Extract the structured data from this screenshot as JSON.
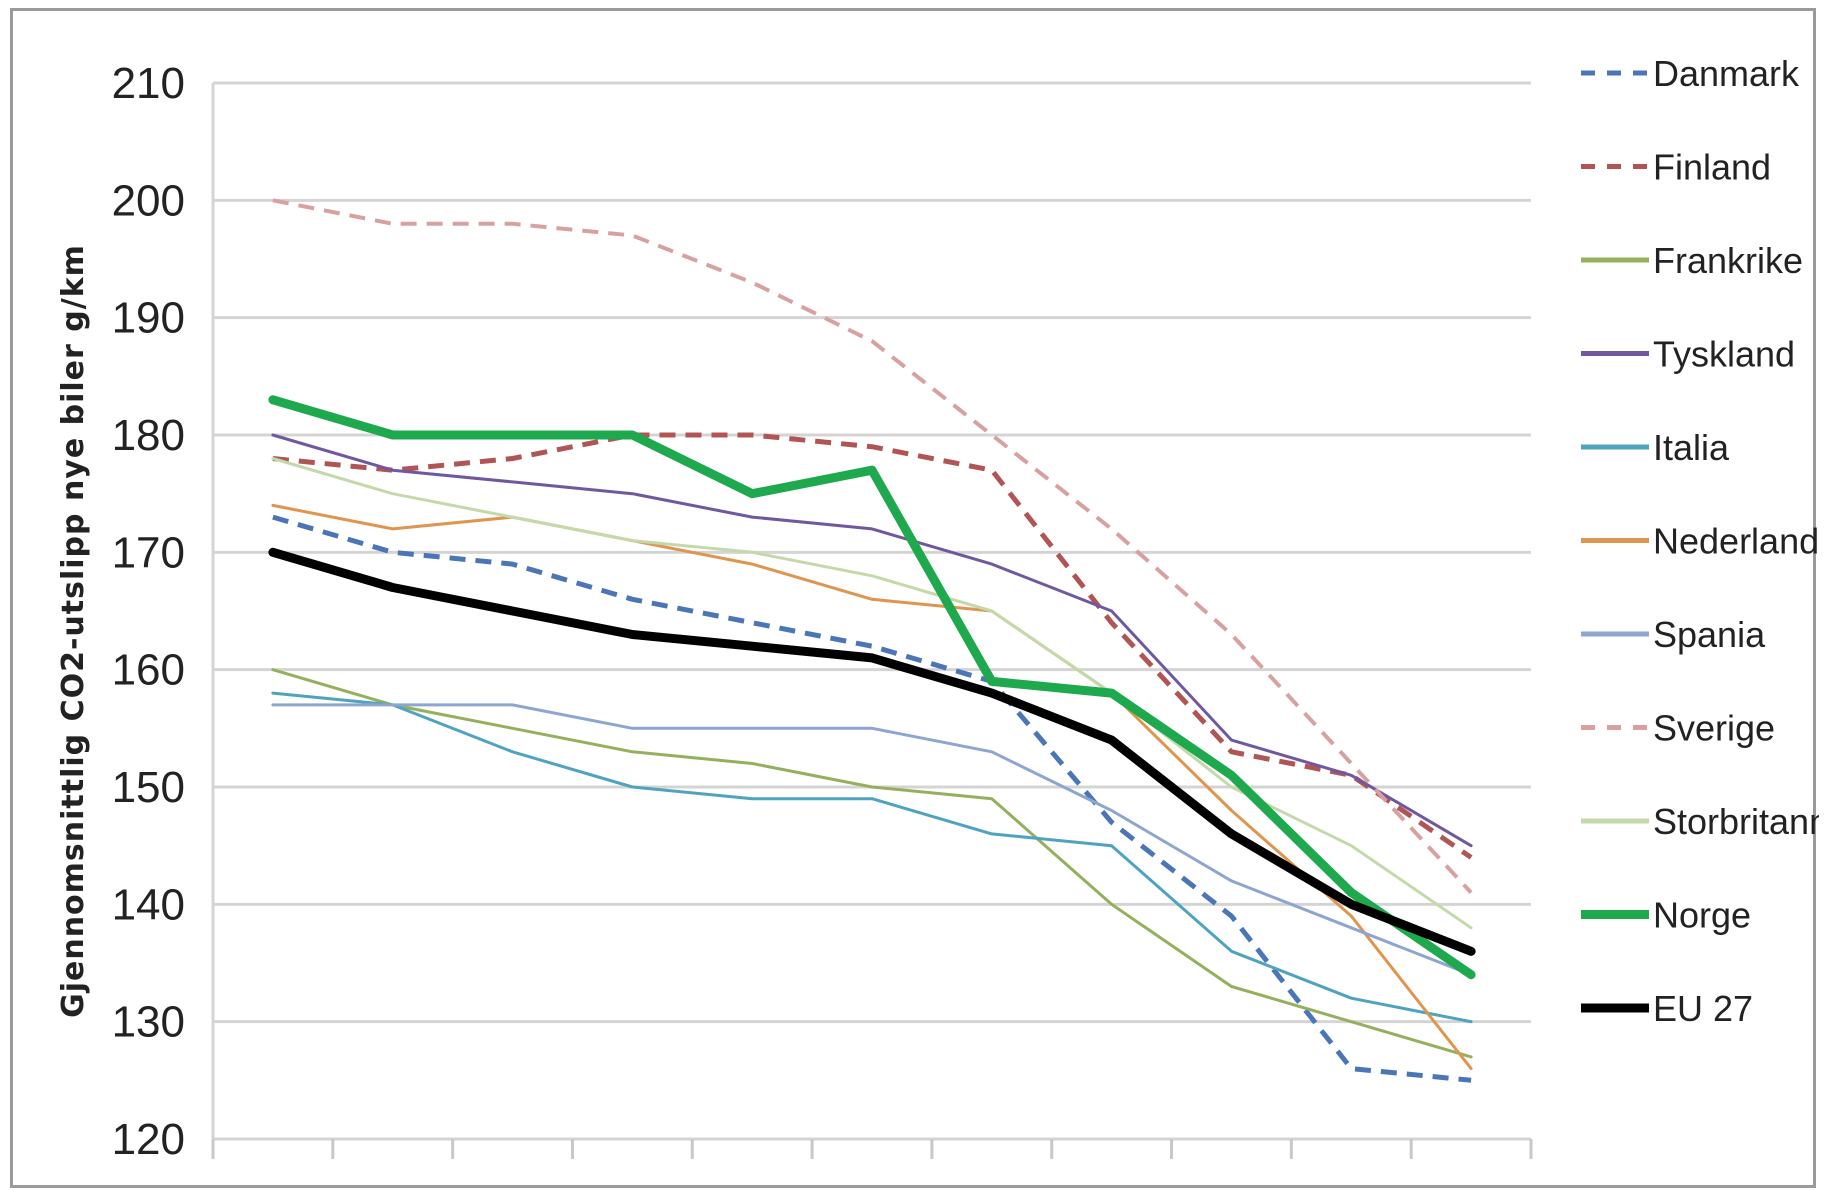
{
  "chart_data": {
    "type": "line",
    "title": "",
    "xlabel": "",
    "ylabel": "Gjennomsnittlig CO2-utslipp nye biler g/km",
    "ylim": [
      120,
      210
    ],
    "yticks": [
      120,
      130,
      140,
      150,
      160,
      170,
      180,
      190,
      200,
      210
    ],
    "grid": true,
    "legend": "right",
    "x": [
      0,
      1,
      2,
      3,
      4,
      5,
      6,
      7,
      8,
      9,
      10
    ],
    "series": [
      {
        "name": "Danmark",
        "color": "#4a76b8",
        "dash": "dashed",
        "width": 5,
        "values": [
          173,
          170,
          169,
          166,
          164,
          162,
          159,
          147,
          139,
          126,
          125
        ]
      },
      {
        "name": "Finland",
        "color": "#b05454",
        "dash": "dashed",
        "width": 5,
        "values": [
          178,
          177,
          178,
          180,
          180,
          179,
          177,
          164,
          153,
          151,
          144
        ]
      },
      {
        "name": "Frankrike",
        "color": "#94b05c",
        "dash": "solid",
        "width": 3,
        "values": [
          160,
          157,
          155,
          153,
          152,
          150,
          149,
          140,
          133,
          130,
          127
        ]
      },
      {
        "name": "Tyskland",
        "color": "#7058a0",
        "dash": "solid",
        "width": 3,
        "values": [
          180,
          177,
          176,
          175,
          173,
          172,
          169,
          165,
          154,
          151,
          145
        ]
      },
      {
        "name": "Italia",
        "color": "#4ea3c0",
        "dash": "solid",
        "width": 3,
        "values": [
          158,
          157,
          153,
          150,
          149,
          149,
          146,
          145,
          136,
          132,
          130
        ]
      },
      {
        "name": "Nederland",
        "color": "#e0954e",
        "dash": "solid",
        "width": 3,
        "values": [
          174,
          172,
          173,
          171,
          169,
          166,
          165,
          158,
          148,
          139,
          126
        ]
      },
      {
        "name": "Spania",
        "color": "#8da6d0",
        "dash": "solid",
        "width": 3,
        "values": [
          157,
          157,
          157,
          155,
          155,
          155,
          153,
          148,
          142,
          138,
          134
        ]
      },
      {
        "name": "Sverige",
        "color": "#d9a0a0",
        "dash": "dashed",
        "width": 4,
        "values": [
          200,
          198,
          198,
          197,
          193,
          188,
          180,
          172,
          163,
          152,
          141
        ]
      },
      {
        "name": "Storbritannia",
        "color": "#c4d9aa",
        "dash": "solid",
        "width": 3,
        "values": [
          178,
          175,
          173,
          171,
          170,
          168,
          165,
          158,
          150,
          145,
          138
        ]
      },
      {
        "name": "Norge",
        "color": "#1ea94e",
        "dash": "solid",
        "width": 9,
        "values": [
          183,
          180,
          180,
          180,
          175,
          177,
          159,
          158,
          151,
          141,
          134
        ]
      },
      {
        "name": "EU 27",
        "color": "#000000",
        "dash": "solid",
        "width": 9,
        "values": [
          170,
          167,
          165,
          163,
          162,
          161,
          158,
          154,
          146,
          140,
          136
        ]
      }
    ]
  }
}
